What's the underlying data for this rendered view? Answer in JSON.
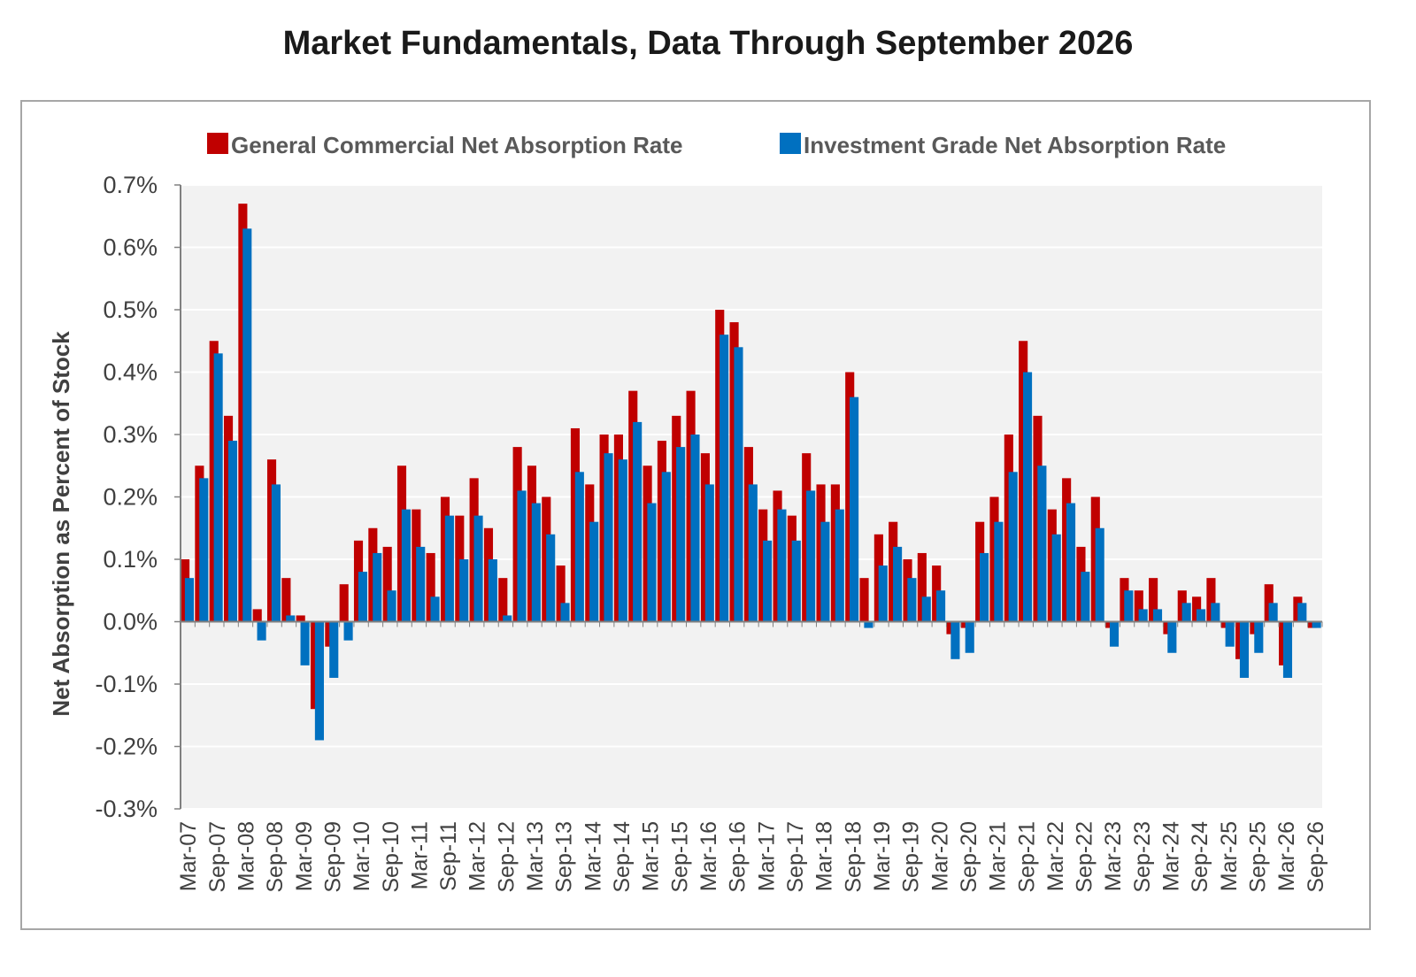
{
  "title": "Market Fundamentals, Data Through September 2026",
  "colors": {
    "general": "#c00000",
    "investment": "#0070c0",
    "plot_bg": "#f2f2f2",
    "grid": "#ffffff"
  },
  "chart_data": {
    "type": "bar",
    "title": "Market Fundamentals, Data Through September 2026",
    "ylabel": "Net Absorption as Percent of Stock",
    "xlabel": "",
    "ylim": [
      -0.3,
      0.7
    ],
    "y_ticks": [
      "0.7%",
      "0.6%",
      "0.5%",
      "0.4%",
      "0.3%",
      "0.2%",
      "0.1%",
      "0.0%",
      "-0.1%",
      "-0.2%",
      "-0.3%"
    ],
    "y_tick_values": [
      0.7,
      0.6,
      0.5,
      0.4,
      0.3,
      0.2,
      0.1,
      0.0,
      -0.1,
      -0.2,
      -0.3
    ],
    "x_tick_labels": [
      "Mar-07",
      "Sep-07",
      "Mar-08",
      "Sep-08",
      "Mar-09",
      "Sep-09",
      "Mar-10",
      "Sep-10",
      "Mar-11",
      "Sep-11",
      "Mar-12",
      "Sep-12",
      "Mar-13",
      "Sep-13",
      "Mar-14",
      "Sep-14",
      "Mar-15",
      "Sep-15",
      "Mar-16",
      "Sep-16",
      "Mar-17",
      "Sep-17",
      "Mar-18",
      "Sep-18",
      "Mar-19",
      "Sep-19",
      "Mar-20",
      "Sep-20",
      "Mar-21",
      "Sep-21",
      "Mar-22",
      "Sep-22",
      "Mar-23",
      "Sep-23",
      "Mar-24",
      "Sep-24",
      "Mar-25",
      "Sep-25",
      "Mar-26",
      "Sep-26"
    ],
    "categories": [
      "Q1-07",
      "Q2-07",
      "Q3-07",
      "Q4-07",
      "Q1-08",
      "Q2-08",
      "Q3-08",
      "Q4-08",
      "Q1-09",
      "Q2-09",
      "Q3-09",
      "Q4-09",
      "Q1-10",
      "Q2-10",
      "Q3-10",
      "Q4-10",
      "Q1-11",
      "Q2-11",
      "Q3-11",
      "Q4-11",
      "Q1-12",
      "Q2-12",
      "Q3-12",
      "Q4-12",
      "Q1-13",
      "Q2-13",
      "Q3-13",
      "Q4-13",
      "Q1-14",
      "Q2-14",
      "Q3-14",
      "Q4-14",
      "Q1-15",
      "Q2-15",
      "Q3-15",
      "Q4-15",
      "Q1-16",
      "Q2-16",
      "Q3-16",
      "Q4-16",
      "Q1-17",
      "Q2-17",
      "Q3-17",
      "Q4-17",
      "Q1-18",
      "Q2-18",
      "Q3-18",
      "Q4-18",
      "Q1-19",
      "Q2-19",
      "Q3-19",
      "Q4-19",
      "Q1-20",
      "Q2-20",
      "Q3-20",
      "Q4-20",
      "Q1-21",
      "Q2-21",
      "Q3-21",
      "Q4-21",
      "Q1-22",
      "Q2-22",
      "Q3-22",
      "Q4-22",
      "Q1-23",
      "Q2-23",
      "Q3-23",
      "Q4-23",
      "Q1-24",
      "Q2-24",
      "Q3-24",
      "Q4-24",
      "Q1-25",
      "Q2-25",
      "Q3-25",
      "Q4-25",
      "Q1-26",
      "Q2-26",
      "Q3-26"
    ],
    "legend_position": "top",
    "grid": true,
    "series": [
      {
        "name": "General Commercial Net Absorption Rate",
        "color": "#c00000",
        "values": [
          0.1,
          0.25,
          0.45,
          0.33,
          0.67,
          0.02,
          0.26,
          0.07,
          0.01,
          -0.14,
          -0.04,
          0.06,
          0.13,
          0.15,
          0.12,
          0.25,
          0.18,
          0.11,
          0.2,
          0.17,
          0.23,
          0.15,
          0.07,
          0.28,
          0.25,
          0.2,
          0.09,
          0.31,
          0.22,
          0.3,
          0.3,
          0.37,
          0.25,
          0.29,
          0.33,
          0.37,
          0.27,
          0.5,
          0.48,
          0.28,
          0.18,
          0.21,
          0.17,
          0.27,
          0.22,
          0.22,
          0.4,
          0.07,
          0.14,
          0.16,
          0.1,
          0.11,
          0.09,
          -0.02,
          -0.01,
          0.16,
          0.2,
          0.3,
          0.45,
          0.33,
          0.18,
          0.23,
          0.12,
          0.2,
          -0.01,
          0.07,
          0.05,
          0.07,
          -0.02,
          0.05,
          0.04,
          0.07,
          -0.01,
          -0.06,
          -0.02,
          0.06,
          -0.07,
          0.04,
          -0.01
        ]
      },
      {
        "name": "Investment Grade Net Absorption Rate",
        "color": "#0070c0",
        "values": [
          0.07,
          0.23,
          0.43,
          0.29,
          0.63,
          -0.03,
          0.22,
          0.01,
          -0.07,
          -0.19,
          -0.09,
          -0.03,
          0.08,
          0.11,
          0.05,
          0.18,
          0.12,
          0.04,
          0.17,
          0.1,
          0.17,
          0.1,
          0.01,
          0.21,
          0.19,
          0.14,
          0.03,
          0.24,
          0.16,
          0.27,
          0.26,
          0.32,
          0.19,
          0.24,
          0.28,
          0.3,
          0.22,
          0.46,
          0.44,
          0.22,
          0.13,
          0.18,
          0.13,
          0.21,
          0.16,
          0.18,
          0.36,
          -0.01,
          0.09,
          0.12,
          0.07,
          0.04,
          0.05,
          -0.06,
          -0.05,
          0.11,
          0.16,
          0.24,
          0.4,
          0.25,
          0.14,
          0.19,
          0.08,
          0.15,
          -0.04,
          0.05,
          0.02,
          0.02,
          -0.05,
          0.03,
          0.02,
          0.03,
          -0.04,
          -0.09,
          -0.05,
          0.03,
          -0.09,
          0.03,
          -0.01
        ]
      }
    ]
  }
}
